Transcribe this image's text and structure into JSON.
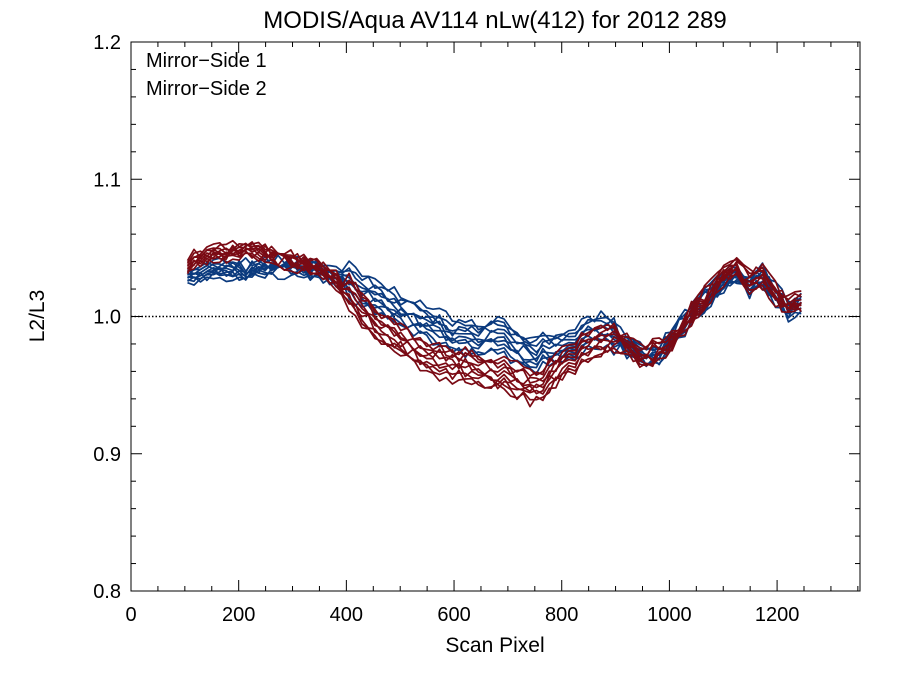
{
  "chart_data": {
    "type": "line",
    "title": "MODIS/Aqua AV114 nLw(412) for 2012 289",
    "xlabel": "Scan Pixel",
    "ylabel": "L2/L3",
    "xlim": [
      0,
      1354
    ],
    "ylim": [
      0.8,
      1.2
    ],
    "xticks": [
      0,
      200,
      400,
      600,
      800,
      1000,
      1200
    ],
    "yticks": [
      0.8,
      0.9,
      1.0,
      1.1,
      1.2
    ],
    "ytick_labels": [
      "0.8",
      "0.9",
      "1.0",
      "1.1",
      "1.2"
    ],
    "reference_line": 1.0,
    "legend_position": "top-left",
    "curves_per_series": 10,
    "series": [
      {
        "name": "Mirror−Side 1",
        "color": "#0b3a7e",
        "x": [
          105,
          150,
          200,
          250,
          300,
          350,
          400,
          450,
          500,
          550,
          600,
          650,
          680,
          700,
          750,
          800,
          850,
          880,
          900,
          950,
          980,
          1000,
          1050,
          1100,
          1120,
          1150,
          1170,
          1200,
          1220,
          1250
        ],
        "values": [
          1.028,
          1.034,
          1.033,
          1.036,
          1.036,
          1.034,
          1.026,
          1.015,
          1.004,
          0.996,
          0.985,
          0.985,
          0.988,
          0.982,
          0.972,
          0.978,
          0.988,
          0.992,
          0.985,
          0.972,
          0.97,
          0.982,
          1.005,
          1.025,
          1.03,
          1.022,
          1.03,
          1.015,
          1.005,
          1.01
        ]
      },
      {
        "name": "Mirror−Side 2",
        "color": "#7a0a14",
        "x": [
          105,
          150,
          200,
          220,
          250,
          300,
          350,
          400,
          450,
          500,
          550,
          600,
          650,
          700,
          750,
          800,
          850,
          900,
          950,
          1000,
          1050,
          1100,
          1120,
          1150,
          1170,
          1200,
          1220,
          1250
        ],
        "values": [
          1.04,
          1.045,
          1.048,
          1.05,
          1.046,
          1.04,
          1.036,
          1.02,
          0.997,
          0.982,
          0.97,
          0.966,
          0.962,
          0.955,
          0.948,
          0.965,
          0.98,
          0.985,
          0.97,
          0.98,
          1.005,
          1.03,
          1.035,
          1.025,
          1.03,
          1.015,
          1.008,
          1.012
        ]
      }
    ]
  }
}
